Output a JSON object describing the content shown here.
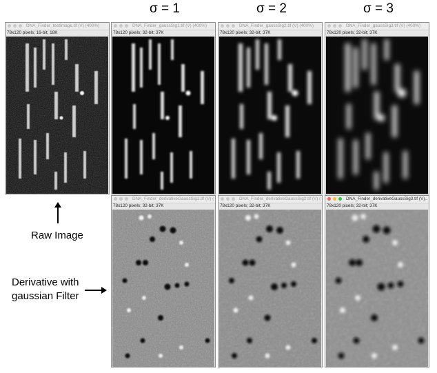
{
  "headers": {
    "sigma1": "σ = 1",
    "sigma2": "σ = 2",
    "sigma3": "σ = 3"
  },
  "windows": {
    "raw": {
      "title": "DNA_Finder_testImage.tif (V) (400%)",
      "info": "78x120 pixels; 16-bit; 18K"
    },
    "gauss1": {
      "title": "DNA_Finder_gaussSig1.tif (V) (400%)",
      "info": "78x120 pixels; 32-bit; 37K"
    },
    "gauss2": {
      "title": "DNA_Finder_gaussSig2.tif (V) (400%)",
      "info": "78x120 pixels; 32-bit; 37K"
    },
    "gauss3": {
      "title": "DNA_Finder_gaussSig3.tif (V) (400%)",
      "info": "78x120 pixels; 32-bit; 37K"
    },
    "deriv1": {
      "title": "DNA_Finder_derivativeGaussSig1.tif (V) (400%)",
      "info": "78x120 pixels; 32-bit; 37K"
    },
    "deriv2": {
      "title": "DNA_Finder_derivativeGaussSig2.tif (V) (400%)",
      "info": "78x120 pixels; 32-bit; 37K"
    },
    "deriv3": {
      "title": "DNA_Finder_derivativeGaussSig3.tif (V)...",
      "info": "78x120 pixels; 32-bit; 37K"
    }
  },
  "labels": {
    "raw_image": "Raw Image",
    "derivative_line1": "Derivative with",
    "derivative_line2": "gaussian Filter"
  },
  "colors": {
    "window_frame": "#8f8f8f",
    "titlebar": "#ececec",
    "light_red": "#fc5f57",
    "light_yellow": "#fdbc2e",
    "light_green": "#2ac840"
  }
}
